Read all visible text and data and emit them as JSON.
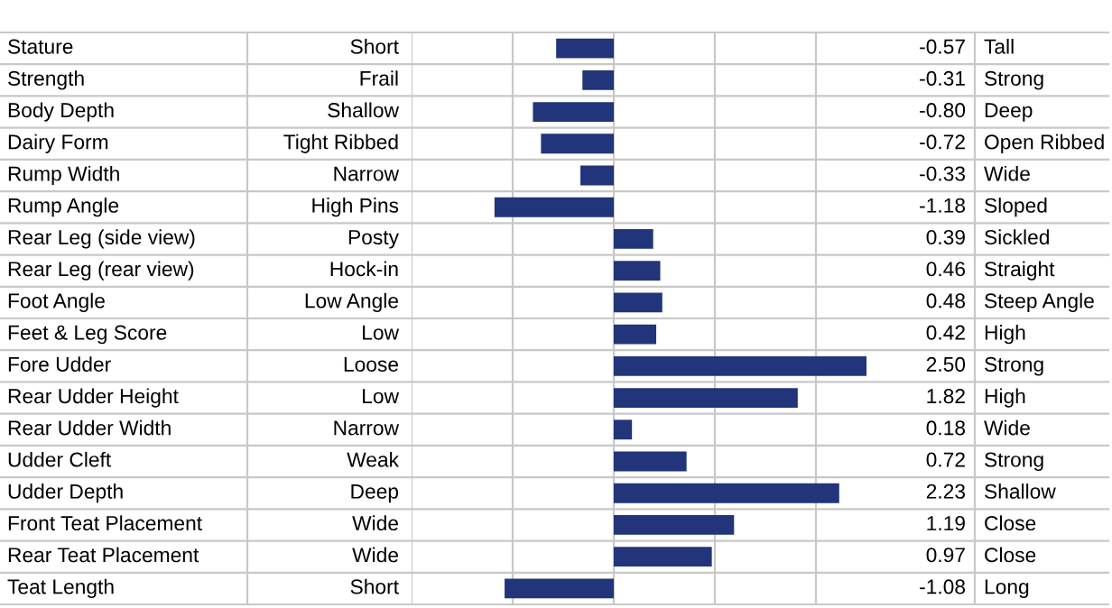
{
  "chart_data": {
    "type": "bar",
    "orientation": "horizontal",
    "categories": [
      "Stature",
      "Strength",
      "Body Depth",
      "Dairy Form",
      "Rump Width",
      "Rump Angle",
      "Rear Leg (side view)",
      "Rear Leg (rear view)",
      "Foot Angle",
      "Feet & Leg Score",
      "Fore Udder",
      "Rear Udder Height",
      "Rear Udder Width",
      "Udder Cleft",
      "Udder Depth",
      "Front Teat Placement",
      "Rear Teat Placement",
      "Teat Length"
    ],
    "values": [
      -0.57,
      -0.31,
      -0.8,
      -0.72,
      -0.33,
      -1.18,
      0.39,
      0.46,
      0.48,
      0.42,
      2.5,
      1.82,
      0.18,
      0.72,
      2.23,
      1.19,
      0.97,
      -1.08
    ],
    "value_labels": [
      "-0.57",
      "-0.31",
      "-0.80",
      "-0.72",
      "-0.33",
      "-1.18",
      "0.39",
      "0.46",
      "0.48",
      "0.42",
      "2.50",
      "1.82",
      "0.18",
      "0.72",
      "2.23",
      "1.19",
      "0.97",
      "-1.08"
    ],
    "color": "#22357a",
    "xlim": [
      -2,
      2.5
    ],
    "xticks": [
      {
        "value": -2,
        "label": null
      },
      {
        "value": -1,
        "label": null
      },
      {
        "value": 0,
        "label": null
      },
      {
        "value": 1,
        "label": null
      },
      {
        "value": 2,
        "label": null
      }
    ],
    "grid": "x",
    "annotations": [
      "Short",
      "Frail",
      "Shallow",
      "Tight Ribbed",
      "Narrow",
      "High Pins",
      "Posty",
      "Hock-in",
      "Low Angle",
      "Low",
      "Loose",
      "Low",
      "Narrow",
      "Weak",
      "Deep",
      "Wide",
      "Wide",
      "Short",
      "Tall",
      "Strong",
      "Deep",
      "Open Ribbed",
      "Wide",
      "Sloped",
      "Sickled",
      "Straight",
      "Steep Angle",
      "High",
      "Strong",
      "High",
      "Wide",
      "Strong",
      "Shallow",
      "Close",
      "Close",
      "Long"
    ]
  }
}
